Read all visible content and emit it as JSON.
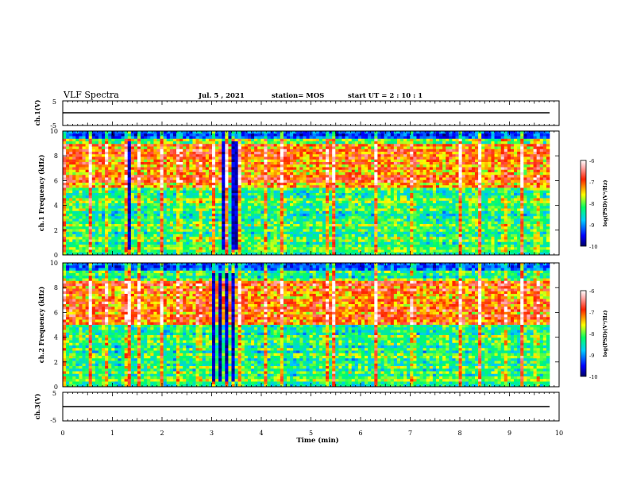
{
  "header": {
    "title": "VLF Spectra",
    "date": "Jul. 5 , 2021",
    "station": "station= MOS",
    "start_ut": "start UT = 2 : 10 : 1"
  },
  "chart_data": [
    {
      "type": "line",
      "panel": "ch1-waveform",
      "ylabel": "ch.1(V)",
      "ylim": [
        -5,
        5
      ],
      "y_ticks": [
        "5",
        "-5"
      ],
      "series": [
        {
          "values": [
            0
          ]
        }
      ]
    },
    {
      "type": "heatmap",
      "panel": "ch1-spectrogram",
      "ylabel": "ch.1 Frequency (kHz)",
      "xlim": [
        0,
        10
      ],
      "ylim": [
        0,
        10
      ],
      "y_ticks": [
        "0",
        "2",
        "4",
        "6",
        "8",
        "10"
      ],
      "colorbar": {
        "label": "log(PSD)(V²/Hz)",
        "range": [
          -10,
          -6
        ],
        "ticks": [
          "-6",
          "-7",
          "-8",
          "-9",
          "-10"
        ]
      },
      "emission_band_kHz": [
        5.5,
        9.0
      ],
      "sferic_times_min": [
        0.05,
        0.55,
        0.9,
        1.3,
        1.35,
        1.55,
        2.0,
        2.35,
        2.75,
        3.05,
        3.3,
        3.45,
        3.55,
        4.1,
        4.4,
        5.35,
        5.45,
        6.3,
        7.05,
        8.0,
        8.4,
        8.9,
        9.25,
        9.55
      ],
      "quiet_intervals_min": [
        [
          1.3,
          1.36
        ],
        [
          3.0,
          3.65
        ]
      ]
    },
    {
      "type": "heatmap",
      "panel": "ch2-spectrogram",
      "ylabel": "ch.2 Frequency (kHz)",
      "xlim": [
        0,
        10
      ],
      "ylim": [
        0,
        10
      ],
      "y_ticks": [
        "0",
        "2",
        "4",
        "6",
        "8",
        "10"
      ],
      "colorbar": {
        "label": "log(PSD)(V²/Hz)",
        "range": [
          -10,
          -6
        ],
        "ticks": [
          "-6",
          "-7",
          "-8",
          "-9",
          "-10"
        ]
      },
      "emission_band_kHz": [
        5.0,
        8.5
      ],
      "sferic_times_min": [
        0.05,
        0.55,
        0.9,
        1.3,
        1.35,
        1.55,
        2.0,
        2.35,
        2.75,
        3.05,
        3.3,
        3.45,
        3.55,
        4.1,
        4.4,
        5.35,
        5.45,
        6.3,
        7.05,
        8.0,
        8.4,
        8.9,
        9.25,
        9.55
      ],
      "quiet_intervals_min": [
        [
          1.3,
          1.36
        ],
        [
          3.0,
          3.65
        ]
      ]
    },
    {
      "type": "line",
      "panel": "ch3-waveform",
      "ylabel": "ch.3(V)",
      "ylim": [
        -5,
        5
      ],
      "y_ticks": [
        "5",
        "-5"
      ],
      "series": [
        {
          "values": [
            0
          ]
        }
      ]
    }
  ],
  "x_axis": {
    "label": "Time (min)",
    "ticks": [
      "0",
      "1",
      "2",
      "3",
      "4",
      "5",
      "6",
      "7",
      "8",
      "9",
      "10"
    ],
    "range": [
      0,
      10
    ]
  },
  "colors": {
    "frame": "#000000",
    "background": "#ffffff"
  }
}
